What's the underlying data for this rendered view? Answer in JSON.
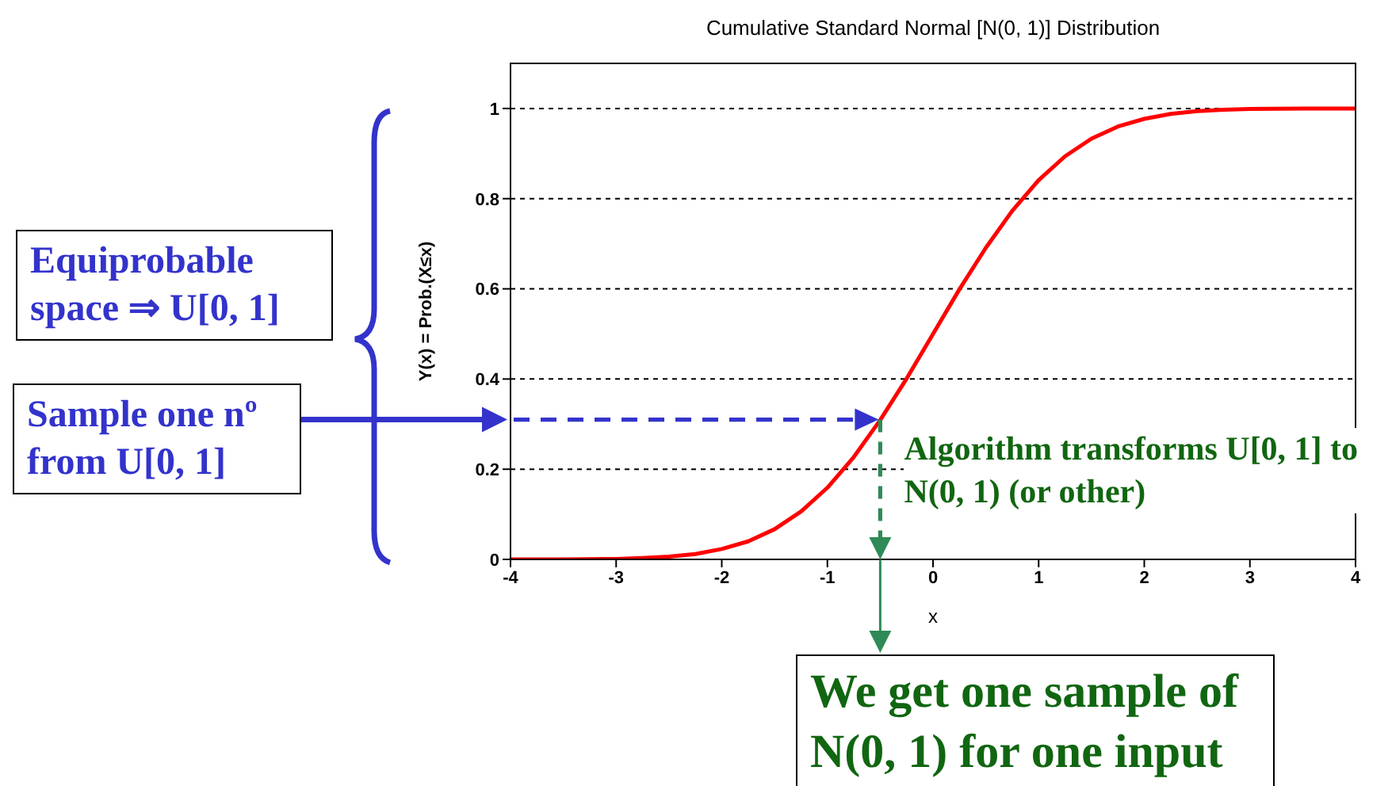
{
  "chart_data": {
    "type": "line",
    "title": "Cumulative Standard Normal [N(0, 1)] Distribution",
    "xlabel": "x",
    "ylabel": "Y(x) = Prob.(X≤x)",
    "x": [
      -4,
      -3.5,
      -3,
      -2.75,
      -2.5,
      -2.25,
      -2,
      -1.75,
      -1.5,
      -1.25,
      -1,
      -0.75,
      -0.5,
      -0.25,
      0,
      0.25,
      0.5,
      0.75,
      1,
      1.25,
      1.5,
      1.75,
      2,
      2.25,
      2.5,
      2.75,
      3,
      3.5,
      4
    ],
    "series": [
      {
        "color": "#ff0000",
        "values": [
          0,
          0,
          0.001,
          0.003,
          0.006,
          0.012,
          0.023,
          0.04,
          0.067,
          0.106,
          0.159,
          0.227,
          0.309,
          0.401,
          0.5,
          0.599,
          0.691,
          0.773,
          0.841,
          0.894,
          0.933,
          0.96,
          0.977,
          0.988,
          0.994,
          0.997,
          0.999,
          1,
          1
        ]
      }
    ],
    "xlim": [
      -4,
      4
    ],
    "xticks": [
      -4,
      -3,
      -2,
      -1,
      0,
      1,
      2,
      3,
      4
    ],
    "ylim": [
      0,
      1.1
    ],
    "yticks": [
      0,
      0.2,
      0.4,
      0.6,
      0.8,
      1
    ],
    "grid": "y",
    "marker": "none",
    "line_style": "solid",
    "annotations": [
      "Equiprobable space ⇒ U[0, 1]",
      "Sample one nº from U[0, 1]",
      {
        "text": "Algorithm transforms U[0, 1] to N(0, 1) (or other)",
        "x": -0.5,
        "y": 0.31
      },
      "We get one sample of N(0, 1) for one input"
    ]
  }
}
